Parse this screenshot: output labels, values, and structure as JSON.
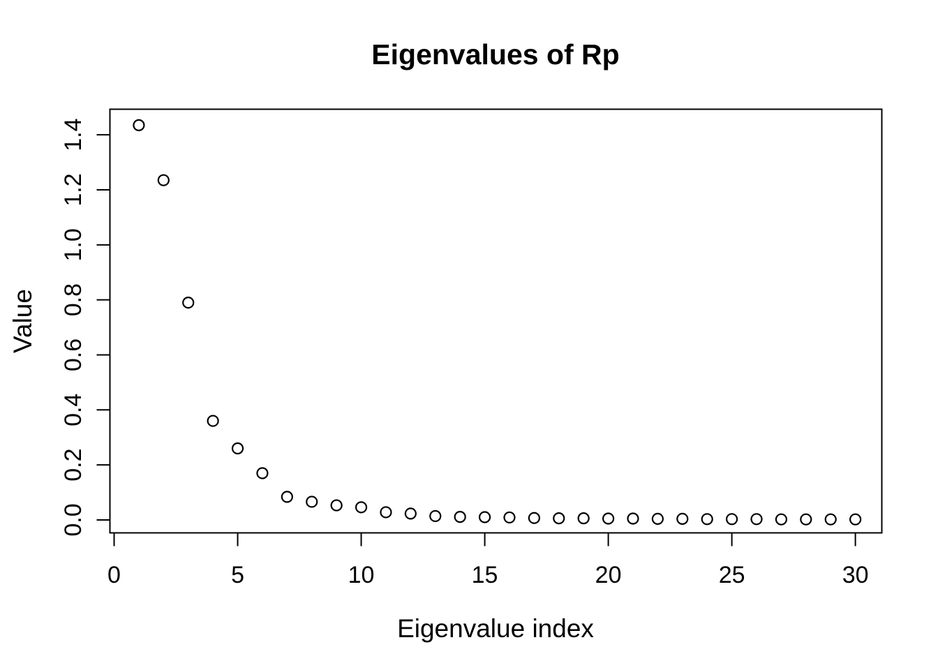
{
  "chart_data": {
    "type": "scatter",
    "title": "Eigenvalues of Rp",
    "xlabel": "Eigenvalue index",
    "ylabel": "Value",
    "x": [
      1,
      2,
      3,
      4,
      5,
      6,
      7,
      8,
      9,
      10,
      11,
      12,
      13,
      14,
      15,
      16,
      17,
      18,
      19,
      20,
      21,
      22,
      23,
      24,
      25,
      26,
      27,
      28,
      29,
      30
    ],
    "y": [
      1.435,
      1.235,
      0.79,
      0.36,
      0.26,
      0.17,
      0.084,
      0.066,
      0.053,
      0.046,
      0.028,
      0.023,
      0.014,
      0.011,
      0.01,
      0.009,
      0.007,
      0.006,
      0.006,
      0.005,
      0.005,
      0.004,
      0.004,
      0.003,
      0.003,
      0.003,
      0.002,
      0.002,
      0.002,
      0.002
    ],
    "x_tick_values": [
      0,
      5,
      10,
      15,
      20,
      25,
      30
    ],
    "x_tick_labels": [
      "0",
      "5",
      "10",
      "15",
      "20",
      "25",
      "30"
    ],
    "y_tick_values": [
      0,
      0.2,
      0.4,
      0.6,
      0.8,
      1.0,
      1.2,
      1.4
    ],
    "y_tick_labels": [
      "0.0",
      "0.2",
      "0.4",
      "0.6",
      "0.8",
      "1.0",
      "1.2",
      "1.4"
    ],
    "xlim": [
      -0.17,
      31.07
    ],
    "ylim": [
      -0.047,
      1.493
    ],
    "grid": false,
    "legend": "none",
    "marker": {
      "shape": "open-circle",
      "color": "#000000"
    },
    "background": "#ffffff",
    "foreground": "#000000"
  }
}
